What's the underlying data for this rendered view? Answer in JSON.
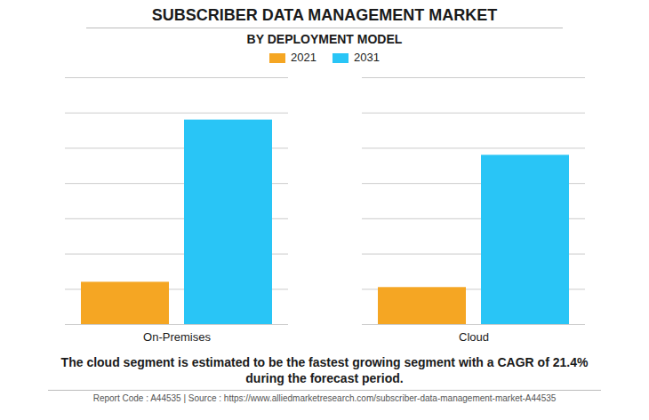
{
  "chart_data": {
    "type": "bar",
    "title": "SUBSCRIBER DATA MANAGEMENT MARKET",
    "subtitle": "BY DEPLOYMENT MODEL",
    "categories": [
      "On-Premises",
      "Cloud"
    ],
    "series": [
      {
        "name": "2021",
        "color": "#F5A623",
        "values": [
          1.2,
          1.05
        ]
      },
      {
        "name": "2031",
        "color": "#29C5F6",
        "values": [
          5.8,
          4.8
        ]
      }
    ],
    "ylim": [
      0,
      7
    ],
    "yticks": [
      0,
      1,
      2,
      3,
      4,
      5,
      6,
      7
    ],
    "grid": true,
    "tick_labels": "x",
    "legend": "top",
    "annotation": "The cloud segment is estimated to be the fastest growing segment with a CAGR of 21.4%\nduring the forecast period.",
    "footer": "Report Code : A44535  |  Source : https://www.alliedmarketresearch.com/subscriber-data-management-market-A44535"
  }
}
